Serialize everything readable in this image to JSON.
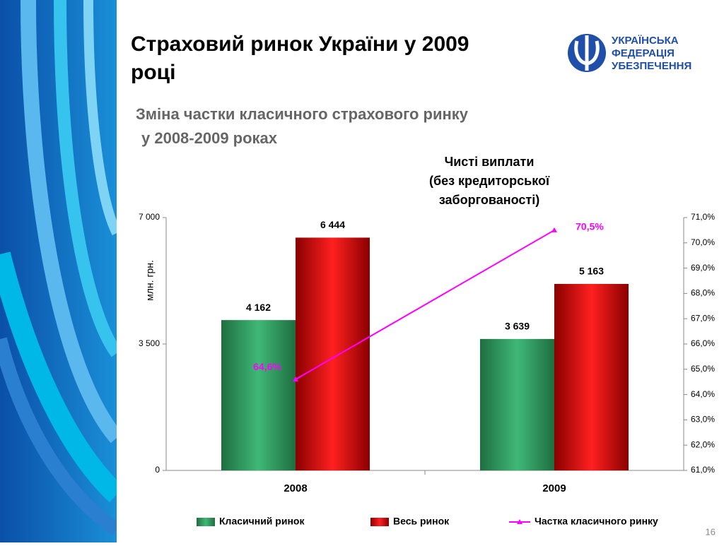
{
  "title_lines": [
    "Страховий ринок України у 2009",
    "році"
  ],
  "subtitle_lines": [
    "Зміна частки класичного страхового ринку",
    "у 2008-2009 роках"
  ],
  "logo_lines": [
    "УКРАЇНСЬКА",
    "ФЕДЕРАЦІЯ",
    "УБЕЗПЕЧЕННЯ"
  ],
  "page_number": "16",
  "chart_data": {
    "type": "bar",
    "title_lines": [
      "Чисті виплати",
      "(без кредиторської",
      "заборгованості)"
    ],
    "ylabel": "млн. грн.",
    "categories": [
      "2008",
      "2009"
    ],
    "ylim": [
      0,
      7000
    ],
    "yticks": [
      0,
      {
        "value": 3500,
        "label": "3 500"
      },
      {
        "value": 7000,
        "label": "7 000"
      }
    ],
    "y2lim": [
      61,
      71
    ],
    "y2ticks": [
      {
        "value": 61,
        "label": "61,0%"
      },
      {
        "value": 62,
        "label": "62,0%"
      },
      {
        "value": 63,
        "label": "63,0%"
      },
      {
        "value": 64,
        "label": "64,0%"
      },
      {
        "value": 65,
        "label": "65,0%"
      },
      {
        "value": 66,
        "label": "66,0%"
      },
      {
        "value": 67,
        "label": "67,0%"
      },
      {
        "value": 68,
        "label": "68,0%"
      },
      {
        "value": 69,
        "label": "69,0%"
      },
      {
        "value": 70,
        "label": "70,0%"
      },
      {
        "value": 71,
        "label": "71,0%"
      }
    ],
    "series": [
      {
        "name": "Класичний ринок",
        "type": "bar",
        "color": "#2e9a5e",
        "values": [
          4162,
          3639
        ],
        "value_labels": [
          "4 162",
          "3 639"
        ]
      },
      {
        "name": "Весь ринок",
        "type": "bar",
        "color": "#e01010",
        "values": [
          6444,
          5163
        ],
        "value_labels": [
          "6 444",
          "5 163"
        ]
      },
      {
        "name": "Частка класичного ринку",
        "type": "line",
        "axis": "y2",
        "color": "#ff00ff",
        "values": [
          64.6,
          70.5
        ],
        "value_labels": [
          "64,6%",
          "70,5%"
        ]
      }
    ],
    "legend": "bottom"
  }
}
